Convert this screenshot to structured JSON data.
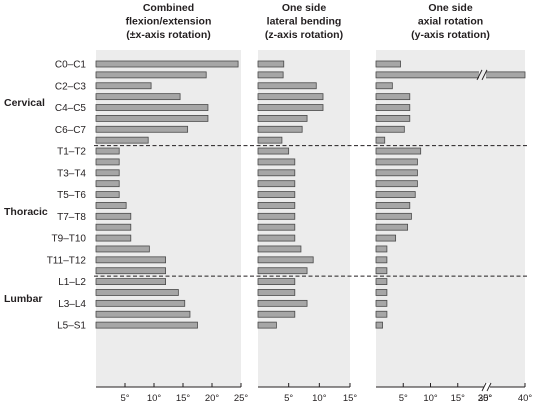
{
  "colors": {
    "panel_bg": "#ececec",
    "bar_fill": "#a6a6a6",
    "bar_stroke": "#4a4a4a",
    "axis": "#231f20",
    "divider": "#231f20"
  },
  "chart_data": [
    {
      "type": "bar",
      "orientation": "horizontal",
      "title": [
        "Combined",
        "flexion/extension",
        "(±x-axis rotation)"
      ],
      "xlim": [
        0,
        25
      ],
      "ticks": [
        5,
        10,
        15,
        20,
        25
      ],
      "tick_labels": [
        "5°",
        "10°",
        "15°",
        "20°",
        "25°"
      ],
      "values": [
        24.5,
        19,
        9.5,
        14.5,
        19.3,
        19.3,
        15.8,
        9,
        4,
        4,
        4,
        4,
        4,
        5.2,
        6,
        6,
        6,
        9.2,
        12,
        12,
        12,
        14.2,
        15.3,
        16.2,
        17.5
      ]
    },
    {
      "type": "bar",
      "orientation": "horizontal",
      "title": [
        "One side",
        "lateral bending",
        "(z-axis rotation)"
      ],
      "xlim": [
        0,
        15
      ],
      "ticks": [
        5,
        10,
        15
      ],
      "tick_labels": [
        "5°",
        "10°",
        "15°"
      ],
      "values": [
        4.2,
        4.1,
        9.5,
        10.6,
        10.6,
        8,
        7.2,
        3.9,
        5,
        6,
        6,
        6,
        6,
        6,
        6,
        6,
        6,
        7,
        9,
        8,
        6,
        6,
        8,
        6,
        3
      ]
    },
    {
      "type": "bar",
      "orientation": "horizontal",
      "title": [
        "One side",
        "axial rotation",
        "(y-axis rotation)"
      ],
      "xlim": [
        0,
        40
      ],
      "ticks": [
        5,
        10,
        15,
        20,
        35,
        40
      ],
      "tick_labels": [
        "5°",
        "10°",
        "15°",
        "20°",
        "35°",
        "40°"
      ],
      "axis_break": [
        20,
        35
      ],
      "values": [
        4.5,
        40,
        3,
        6.2,
        6.2,
        6.2,
        5.2,
        1.6,
        8.2,
        7.6,
        7.6,
        7.6,
        7.2,
        6.2,
        6.5,
        5.8,
        3.6,
        2,
        2,
        2,
        2,
        2,
        2,
        2,
        1.2
      ]
    }
  ],
  "rows": {
    "segment_labels": [
      "C0–C1",
      "",
      "C2–C3",
      "",
      "C4–C5",
      "",
      "C6–C7",
      "",
      "T1–T2",
      "",
      "T3–T4",
      "",
      "T5–T6",
      "",
      "T7–T8",
      "",
      "T9–T10",
      "",
      "T11–T12",
      "",
      "L1–L2",
      "",
      "L3–L4",
      "",
      "L5–S1"
    ]
  },
  "regions": [
    "Cervical",
    "Thoracic",
    "Lumbar"
  ]
}
